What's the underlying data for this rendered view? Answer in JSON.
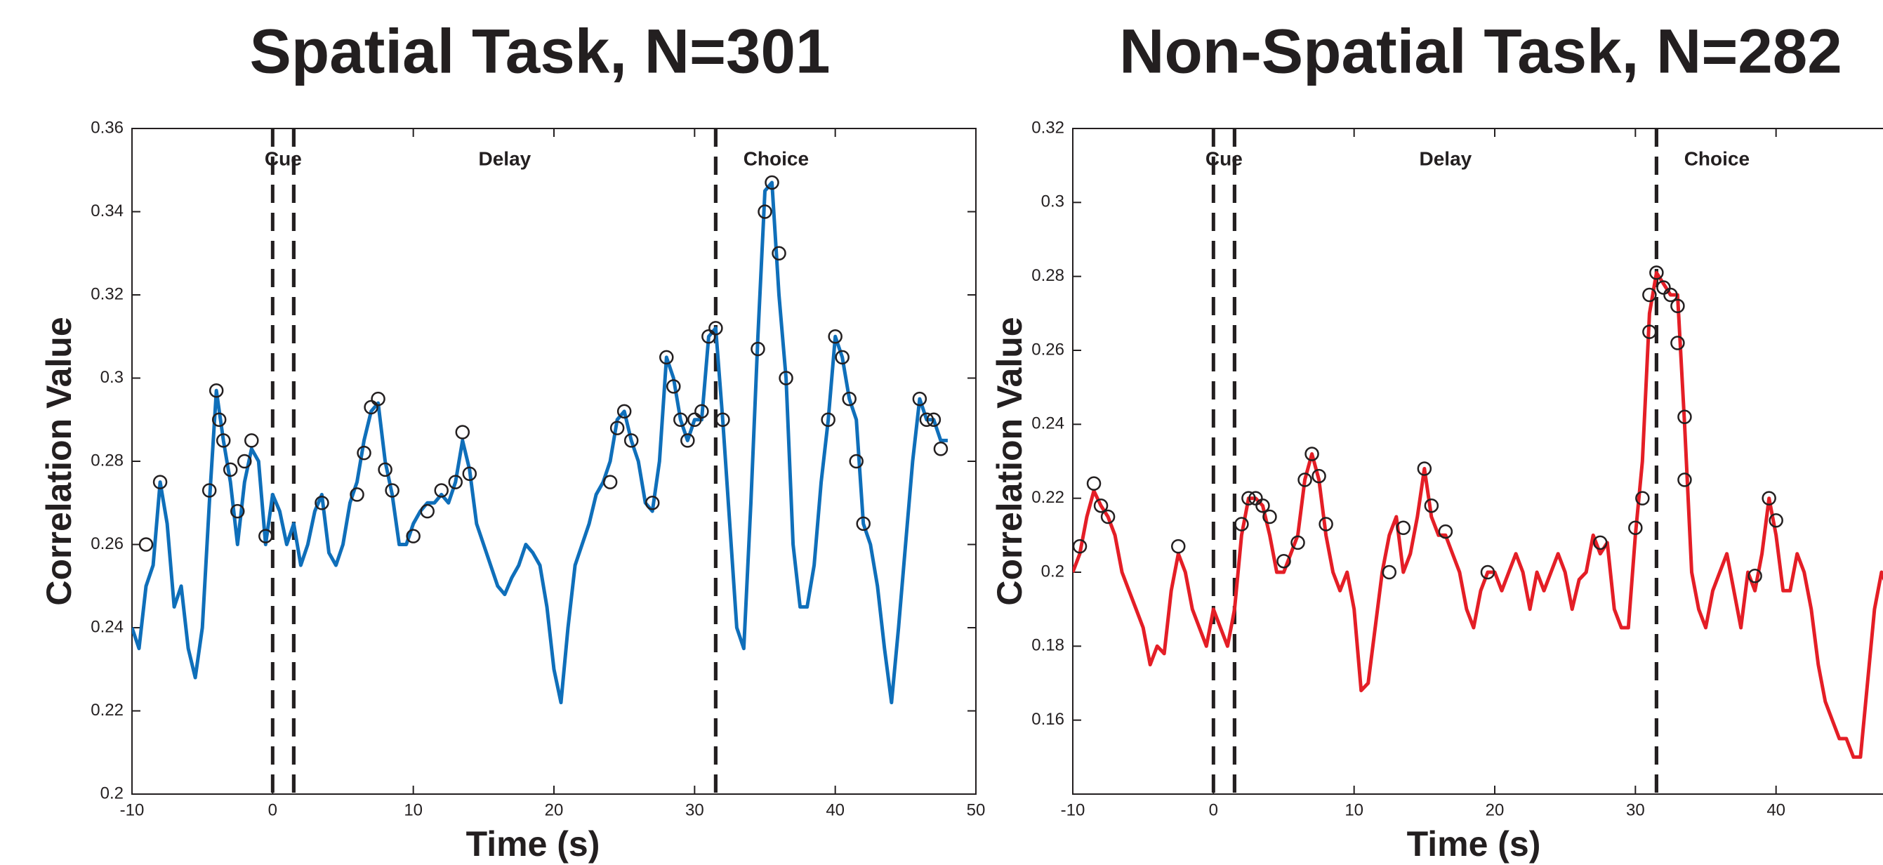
{
  "chart_data": [
    {
      "type": "line",
      "title": "Spatial Task, N=301",
      "xlabel": "Time (s)",
      "ylabel": "Correlation Value",
      "xlim": [
        -10,
        50
      ],
      "ylim": [
        0.2,
        0.36
      ],
      "xticks": [
        -10,
        0,
        10,
        20,
        30,
        40,
        50
      ],
      "yticks": [
        0.2,
        0.22,
        0.24,
        0.26,
        0.28,
        0.3,
        0.32,
        0.34,
        0.36
      ],
      "grid": false,
      "phases": [
        {
          "name": "Cue",
          "start": 0,
          "end": 1.5
        },
        {
          "name": "Delay",
          "start": 1.5,
          "end": 31.5
        },
        {
          "name": "Choice",
          "start": 31.5
        }
      ],
      "series": [
        {
          "color": "#0f6fba",
          "x": [
            -10,
            -9.5,
            -9,
            -8.5,
            -8,
            -7.5,
            -7,
            -6.5,
            -6,
            -5.5,
            -5,
            -4.5,
            -4,
            -3.5,
            -3,
            -2.5,
            -2,
            -1.5,
            -1,
            -0.5,
            0,
            0.5,
            1,
            1.5,
            2,
            2.5,
            3,
            3.5,
            4,
            4.5,
            5,
            5.5,
            6,
            6.5,
            7,
            7.5,
            8,
            8.5,
            9,
            9.5,
            10,
            10.5,
            11,
            11.5,
            12,
            12.5,
            13,
            13.5,
            14,
            14.5,
            15,
            15.5,
            16,
            16.5,
            17,
            17.5,
            18,
            18.5,
            19,
            19.5,
            20,
            20.5,
            21,
            21.5,
            22,
            22.5,
            23,
            23.5,
            24,
            24.5,
            25,
            25.5,
            26,
            26.5,
            27,
            27.5,
            28,
            28.5,
            29,
            29.5,
            30,
            30.5,
            31,
            31.5,
            32,
            32.5,
            33,
            33.5,
            34,
            34.5,
            35,
            35.5,
            36,
            36.5,
            37,
            37.5,
            38,
            38.5,
            39,
            39.5,
            40,
            40.5,
            41,
            41.5,
            42,
            42.5,
            43,
            43.5,
            44,
            44.5,
            45,
            45.5,
            46,
            46.5,
            47,
            47.5,
            48
          ],
          "values": [
            0.24,
            0.235,
            0.25,
            0.255,
            0.275,
            0.265,
            0.245,
            0.25,
            0.235,
            0.228,
            0.24,
            0.27,
            0.297,
            0.285,
            0.275,
            0.26,
            0.275,
            0.283,
            0.28,
            0.26,
            0.272,
            0.268,
            0.26,
            0.265,
            0.255,
            0.26,
            0.268,
            0.272,
            0.258,
            0.255,
            0.26,
            0.27,
            0.275,
            0.285,
            0.292,
            0.294,
            0.28,
            0.272,
            0.26,
            0.26,
            0.265,
            0.268,
            0.27,
            0.27,
            0.272,
            0.27,
            0.275,
            0.285,
            0.278,
            0.265,
            0.26,
            0.255,
            0.25,
            0.248,
            0.252,
            0.255,
            0.26,
            0.258,
            0.255,
            0.245,
            0.23,
            0.222,
            0.24,
            0.255,
            0.26,
            0.265,
            0.272,
            0.275,
            0.28,
            0.29,
            0.292,
            0.285,
            0.28,
            0.27,
            0.268,
            0.28,
            0.305,
            0.3,
            0.29,
            0.285,
            0.29,
            0.29,
            0.31,
            0.312,
            0.29,
            0.265,
            0.24,
            0.235,
            0.27,
            0.31,
            0.345,
            0.347,
            0.32,
            0.3,
            0.26,
            0.245,
            0.245,
            0.255,
            0.275,
            0.29,
            0.31,
            0.305,
            0.295,
            0.29,
            0.265,
            0.26,
            0.25,
            0.235,
            0.222,
            0.24,
            0.26,
            0.28,
            0.295,
            0.29,
            0.29,
            0.285,
            0.285
          ]
        },
        {
          "color": "#231f20",
          "marker": "circle",
          "x": [
            -9,
            -8,
            -4.5,
            -4,
            -3.8,
            -3.5,
            -3,
            -2.5,
            -2,
            -1.5,
            -0.5,
            3.5,
            6,
            6.5,
            7,
            7.5,
            8,
            8.5,
            10,
            11,
            12,
            13,
            13.5,
            14,
            24,
            24.5,
            25,
            25.5,
            27,
            28,
            28.5,
            29,
            29.5,
            30,
            30.5,
            31,
            31.5,
            32,
            34.5,
            35,
            35.5,
            36,
            36.5,
            39.5,
            40,
            40.5,
            41,
            41.5,
            42,
            46,
            46.5,
            47,
            47.5
          ],
          "values": [
            0.26,
            0.275,
            0.273,
            0.297,
            0.29,
            0.285,
            0.278,
            0.268,
            0.28,
            0.285,
            0.262,
            0.27,
            0.272,
            0.282,
            0.293,
            0.295,
            0.278,
            0.273,
            0.262,
            0.268,
            0.273,
            0.275,
            0.287,
            0.277,
            0.275,
            0.288,
            0.292,
            0.285,
            0.27,
            0.305,
            0.298,
            0.29,
            0.285,
            0.29,
            0.292,
            0.31,
            0.312,
            0.29,
            0.307,
            0.34,
            0.347,
            0.33,
            0.3,
            0.29,
            0.31,
            0.305,
            0.295,
            0.28,
            0.265,
            0.295,
            0.29,
            0.29,
            0.283
          ]
        }
      ]
    },
    {
      "type": "line",
      "title": "Non-Spatial Task, N=282",
      "xlabel": "Time (s)",
      "ylabel": "Correlation Value",
      "xlim": [
        -10,
        50
      ],
      "ylim": [
        0.14,
        0.32
      ],
      "xticks": [
        -10,
        0,
        10,
        20,
        30,
        40
      ],
      "yticks": [
        0.16,
        0.18,
        0.2,
        0.22,
        0.24,
        0.26,
        0.28,
        0.3,
        0.32
      ],
      "grid": false,
      "phases": [
        {
          "name": "Cue",
          "start": 0,
          "end": 1.5
        },
        {
          "name": "Delay",
          "start": 1.5,
          "end": 31.5
        },
        {
          "name": "Choice",
          "start": 31.5
        }
      ],
      "series": [
        {
          "color": "#e41e26",
          "x": [
            -10,
            -9.5,
            -9,
            -8.5,
            -8,
            -7.5,
            -7,
            -6.5,
            -6,
            -5.5,
            -5,
            -4.5,
            -4,
            -3.5,
            -3,
            -2.5,
            -2,
            -1.5,
            -1,
            -0.5,
            0,
            0.5,
            1,
            1.5,
            2,
            2.5,
            3,
            3.5,
            4,
            4.5,
            5,
            5.5,
            6,
            6.5,
            7,
            7.5,
            8,
            8.5,
            9,
            9.5,
            10,
            10.5,
            11,
            11.5,
            12,
            12.5,
            13,
            13.5,
            14,
            14.5,
            15,
            15.5,
            16,
            16.5,
            17,
            17.5,
            18,
            18.5,
            19,
            19.5,
            20,
            20.5,
            21,
            21.5,
            22,
            22.5,
            23,
            23.5,
            24,
            24.5,
            25,
            25.5,
            26,
            26.5,
            27,
            27.5,
            28,
            28.5,
            29,
            29.5,
            30,
            30.5,
            31,
            31.5,
            32,
            32.5,
            33,
            33.5,
            34,
            34.5,
            35,
            35.5,
            36,
            36.5,
            37,
            37.5,
            38,
            38.5,
            39,
            39.5,
            40,
            40.5,
            41,
            41.5,
            42,
            42.5,
            43,
            43.5,
            44,
            44.5,
            45,
            45.5,
            46,
            46.5,
            47,
            47.5,
            48,
            48.5
          ],
          "values": [
            0.2,
            0.205,
            0.215,
            0.222,
            0.218,
            0.215,
            0.21,
            0.2,
            0.195,
            0.19,
            0.185,
            0.175,
            0.18,
            0.178,
            0.195,
            0.205,
            0.2,
            0.19,
            0.185,
            0.18,
            0.19,
            0.185,
            0.18,
            0.19,
            0.21,
            0.22,
            0.22,
            0.218,
            0.21,
            0.2,
            0.2,
            0.205,
            0.21,
            0.225,
            0.232,
            0.225,
            0.21,
            0.2,
            0.195,
            0.2,
            0.19,
            0.168,
            0.17,
            0.185,
            0.2,
            0.21,
            0.215,
            0.2,
            0.205,
            0.215,
            0.228,
            0.215,
            0.21,
            0.21,
            0.205,
            0.2,
            0.19,
            0.185,
            0.195,
            0.2,
            0.2,
            0.195,
            0.2,
            0.205,
            0.2,
            0.19,
            0.2,
            0.195,
            0.2,
            0.205,
            0.2,
            0.19,
            0.198,
            0.2,
            0.21,
            0.205,
            0.208,
            0.19,
            0.185,
            0.185,
            0.21,
            0.23,
            0.27,
            0.281,
            0.278,
            0.275,
            0.275,
            0.24,
            0.2,
            0.19,
            0.185,
            0.195,
            0.2,
            0.205,
            0.195,
            0.185,
            0.2,
            0.195,
            0.205,
            0.22,
            0.21,
            0.195,
            0.195,
            0.205,
            0.2,
            0.19,
            0.175,
            0.165,
            0.16,
            0.155,
            0.155,
            0.15,
            0.15,
            0.17,
            0.19,
            0.2,
            0.195,
            0.205
          ]
        },
        {
          "color": "#231f20",
          "marker": "circle",
          "x": [
            -9.5,
            -8.5,
            -8,
            -7.5,
            -2.5,
            2,
            2.5,
            3,
            3.5,
            4,
            5,
            6,
            6.5,
            7,
            7.5,
            8,
            12.5,
            13.5,
            15,
            15.5,
            16.5,
            19.5,
            27.5,
            30,
            30.5,
            31,
            31,
            31.5,
            32,
            32.5,
            33,
            33,
            33.5,
            33.5,
            38.5,
            39.5,
            40
          ],
          "values": [
            0.207,
            0.224,
            0.218,
            0.215,
            0.207,
            0.213,
            0.22,
            0.22,
            0.218,
            0.215,
            0.203,
            0.208,
            0.225,
            0.232,
            0.226,
            0.213,
            0.2,
            0.212,
            0.228,
            0.218,
            0.211,
            0.2,
            0.208,
            0.212,
            0.22,
            0.265,
            0.275,
            0.281,
            0.277,
            0.275,
            0.272,
            0.262,
            0.242,
            0.225,
            0.199,
            0.22,
            0.214
          ]
        }
      ]
    }
  ]
}
